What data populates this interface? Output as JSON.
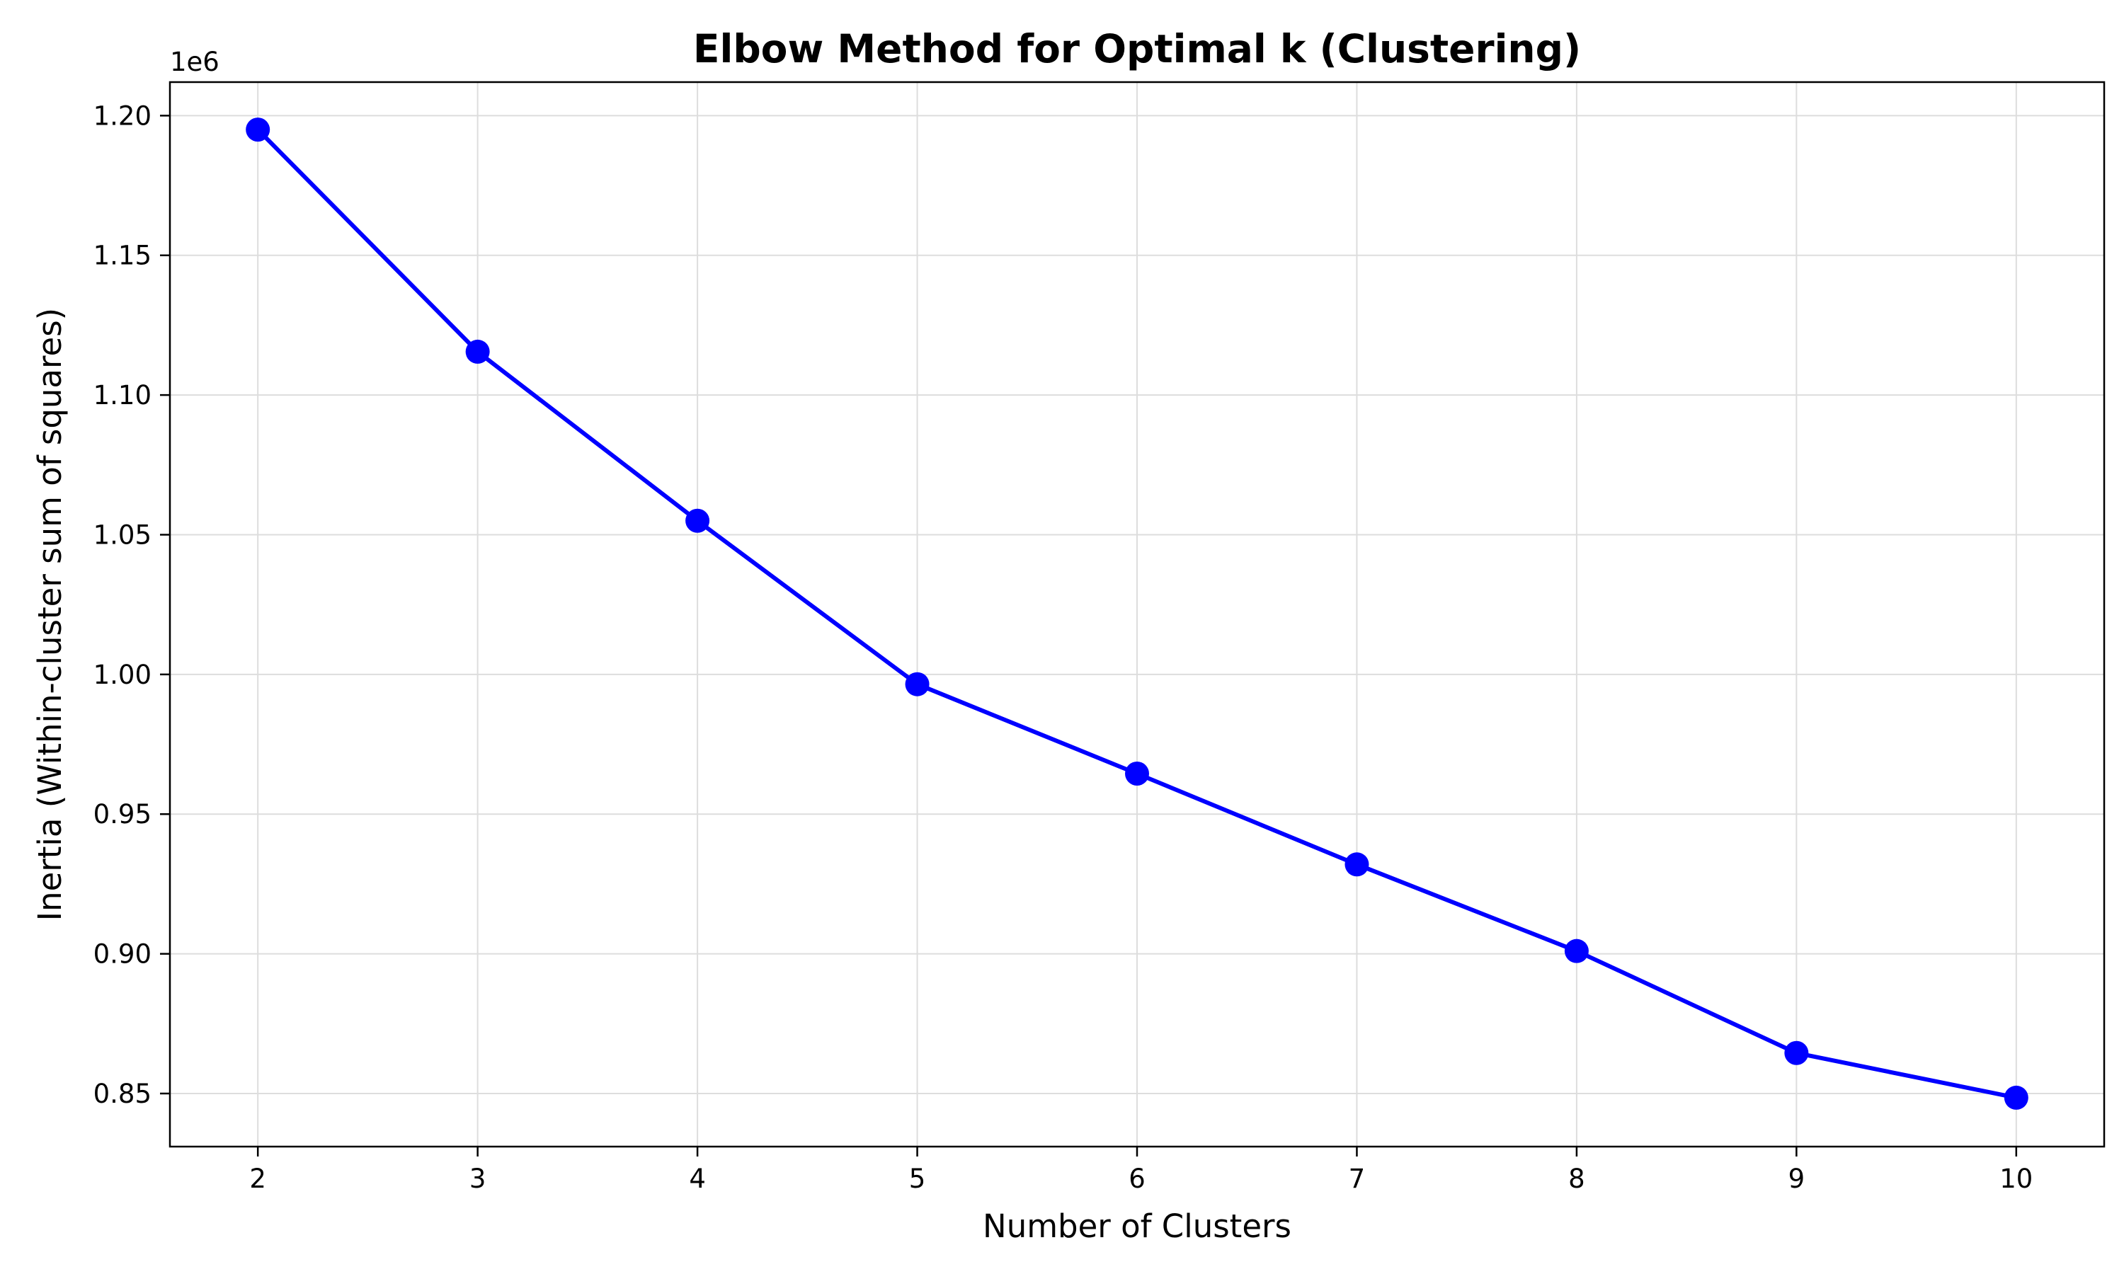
{
  "chart_data": {
    "type": "line",
    "title": "Elbow Method for Optimal k (Clustering)",
    "xlabel": "Number of Clusters",
    "ylabel": "Inertia (Within-cluster sum of squares)",
    "y_offset_label": "1e6",
    "x": [
      2,
      3,
      4,
      5,
      6,
      7,
      8,
      9,
      10
    ],
    "values": [
      1195000,
      1115500,
      1055000,
      996500,
      964500,
      932000,
      901000,
      864500,
      848500
    ],
    "x_ticks": [
      2,
      3,
      4,
      5,
      6,
      7,
      8,
      9,
      10
    ],
    "x_tick_labels": [
      "2",
      "3",
      "4",
      "5",
      "6",
      "7",
      "8",
      "9",
      "10"
    ],
    "y_ticks": [
      850000,
      900000,
      950000,
      1000000,
      1050000,
      1100000,
      1150000,
      1200000
    ],
    "y_tick_labels": [
      "0.85",
      "0.90",
      "0.95",
      "1.00",
      "1.05",
      "1.10",
      "1.15",
      "1.20"
    ],
    "xlim": [
      1.6,
      10.4
    ],
    "ylim": [
      831000,
      1212000
    ],
    "grid": true,
    "line_color": "#0000ff",
    "marker": "circle"
  }
}
